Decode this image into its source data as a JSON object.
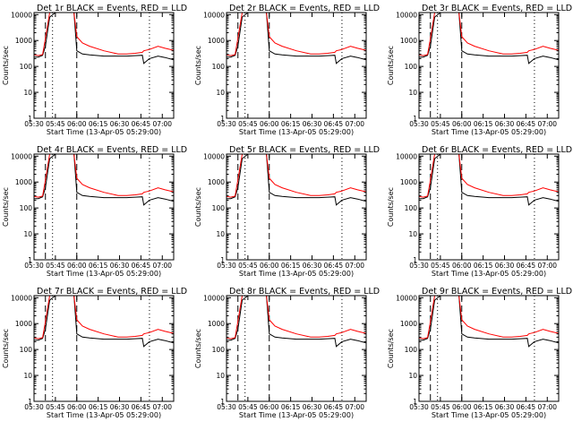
{
  "chart_data": {
    "type": "line",
    "shared": {
      "xlabel": "Start Time (13-Apr-05 05:29:00)",
      "ylabel": "Counts/sec",
      "x_tick_labels": [
        "05:30",
        "05:45",
        "06:00",
        "06:15",
        "06:30",
        "06:45",
        "07:00"
      ],
      "x_tick_minutes": [
        1,
        16,
        31,
        46,
        61,
        76,
        91
      ],
      "xlim_minutes": [
        1,
        99
      ],
      "y_scale": "log",
      "ylim": [
        1,
        12000
      ],
      "y_tick_labels": [
        "1",
        "10",
        "100",
        "1000",
        "10000"
      ],
      "y_tick_values": [
        1,
        10,
        100,
        1000,
        10000
      ],
      "series_colors": {
        "events": "#000000",
        "lld": "#ff0000"
      },
      "vlines_dashed_minutes": [
        9,
        31
      ],
      "vlines_dotted_minutes": [
        14,
        82
      ],
      "x_minutes": [
        1,
        4,
        7,
        9,
        12,
        16,
        22,
        29,
        31,
        35,
        40,
        50,
        60,
        66,
        72,
        77,
        78,
        82,
        88,
        93,
        99
      ],
      "lld_values": [
        280,
        260,
        290,
        1200,
        12000,
        12000,
        12000,
        12000,
        1400,
        800,
        600,
        400,
        300,
        300,
        320,
        350,
        400,
        450,
        600,
        500,
        420
      ],
      "events_values": [
        230,
        230,
        270,
        600,
        8000,
        12000,
        12000,
        12000,
        400,
        300,
        280,
        250,
        250,
        250,
        260,
        270,
        130,
        200,
        250,
        220,
        180
      ]
    },
    "panels": [
      {
        "title": "Det 1r BLACK = Events, RED = LLD"
      },
      {
        "title": "Det 2r BLACK = Events, RED = LLD"
      },
      {
        "title": "Det 3r BLACK = Events, RED = LLD"
      },
      {
        "title": "Det 4r BLACK = Events, RED = LLD"
      },
      {
        "title": "Det 5r BLACK = Events, RED = LLD"
      },
      {
        "title": "Det 6r BLACK = Events, RED = LLD"
      },
      {
        "title": "Det 7r BLACK = Events, RED = LLD"
      },
      {
        "title": "Det 8r BLACK = Events, RED = LLD"
      },
      {
        "title": "Det 9r BLACK = Events, RED = LLD"
      }
    ]
  }
}
